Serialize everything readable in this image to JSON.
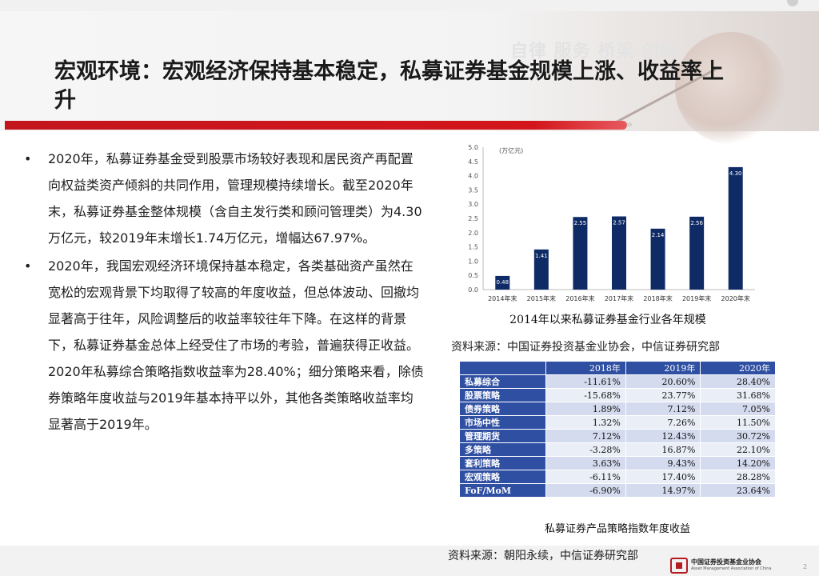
{
  "header": {
    "slogan": "自律 服务 桥梁 创新",
    "title": "宏观环境：宏观经济保持基本稳定，私募证券基金规模上涨、收益率上升"
  },
  "bullets": [
    "2020年，私募证券基金受到股票市场较好表现和居民资产再配置向权益类资产倾斜的共同作用，管理规模持续增长。截至2020年末，私募证券基金整体规模（含自主发行类和顾问管理类）为4.30万亿元，较2019年末增长1.74万亿元，增幅达67.97%。",
    "2020年，我国宏观经济环境保持基本稳定，各类基础资产虽然在宽松的宏观背景下均取得了较高的年度收益，但总体波动、回撤均显著高于往年，风险调整后的收益率较往年下降。在这样的背景下，私募证券基金总体上经受住了市场的考验，普遍获得正收益。2020年私募综合策略指数收益率为28.40%；细分策略来看，除债券策略年度收益与2019年基本持平以外，其他各类策略收益率均显著高于2019年。"
  ],
  "bullet_symbol": "•",
  "chart_data": {
    "type": "bar",
    "unit_label": "(万亿元)",
    "categories": [
      "2014年末",
      "2015年末",
      "2016年末",
      "2017年末",
      "2018年末",
      "2019年末",
      "2020年末"
    ],
    "values": [
      0.48,
      1.41,
      2.55,
      2.57,
      2.14,
      2.56,
      4.3
    ],
    "value_labels": [
      "0.48",
      "1.41",
      "2.55",
      "2.57",
      "2.14",
      "2.56",
      "4.30"
    ],
    "y_ticks": [
      "0.0",
      "0.5",
      "1.0",
      "1.5",
      "2.0",
      "2.5",
      "3.0",
      "3.5",
      "4.0",
      "4.5",
      "5.0"
    ],
    "ylim": [
      0,
      5
    ],
    "bar_color": "#0f2b66",
    "grid": false
  },
  "chart_title": "2014年以来私募证券基金行业各年规模",
  "source1": "资料来源：中国证券投资基金业协会，中信证券研究部",
  "table": {
    "headers": [
      "2018年",
      "2019年",
      "2020年"
    ],
    "rows": [
      {
        "name": "私募综合",
        "values": [
          "-11.61%",
          "20.60%",
          "28.40%"
        ]
      },
      {
        "name": "股票策略",
        "values": [
          "-15.68%",
          "23.77%",
          "31.68%"
        ]
      },
      {
        "name": "债券策略",
        "values": [
          "1.89%",
          "7.12%",
          "7.05%"
        ]
      },
      {
        "name": "市场中性",
        "values": [
          "1.32%",
          "7.26%",
          "11.50%"
        ]
      },
      {
        "name": "管理期货",
        "values": [
          "7.12%",
          "12.43%",
          "30.72%"
        ]
      },
      {
        "name": "多策略",
        "values": [
          "-3.28%",
          "16.87%",
          "22.10%"
        ]
      },
      {
        "name": "套利策略",
        "values": [
          "3.63%",
          "9.43%",
          "14.20%"
        ]
      },
      {
        "name": "宏观策略",
        "values": [
          "-6.11%",
          "17.40%",
          "28.28%"
        ]
      },
      {
        "name": "FoF/MoM",
        "values": [
          "-6.90%",
          "14.97%",
          "23.64%"
        ]
      }
    ],
    "header_color": "#2f4fa2"
  },
  "table_title": "私募证券产品策略指数年度收益",
  "source2": "资料来源：朝阳永续，中信证券研究部",
  "footer": {
    "org": "中国证券投资基金业协会",
    "org_en": "Asset Management Association of China",
    "page": "2"
  }
}
